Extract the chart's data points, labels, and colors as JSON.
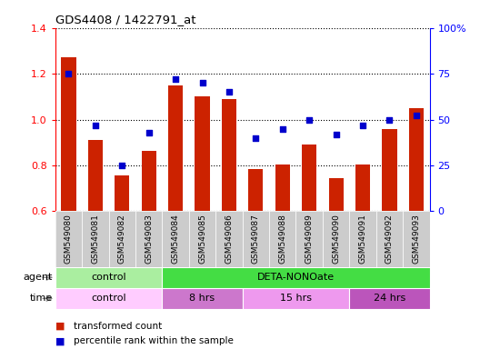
{
  "title": "GDS4408 / 1422791_at",
  "categories": [
    "GSM549080",
    "GSM549081",
    "GSM549082",
    "GSM549083",
    "GSM549084",
    "GSM549085",
    "GSM549086",
    "GSM549087",
    "GSM549088",
    "GSM549089",
    "GSM549090",
    "GSM549091",
    "GSM549092",
    "GSM549093"
  ],
  "bar_values": [
    1.27,
    0.91,
    0.755,
    0.865,
    1.15,
    1.1,
    1.09,
    0.785,
    0.805,
    0.89,
    0.745,
    0.805,
    0.96,
    1.05
  ],
  "scatter_values": [
    75,
    47,
    25,
    43,
    72,
    70,
    65,
    40,
    45,
    50,
    42,
    47,
    50,
    52
  ],
  "ylim_left": [
    0.6,
    1.4
  ],
  "ylim_right": [
    0,
    100
  ],
  "yticks_left": [
    0.6,
    0.8,
    1.0,
    1.2,
    1.4
  ],
  "yticks_right": [
    0,
    25,
    50,
    75,
    100
  ],
  "ytick_labels_right": [
    "0",
    "25",
    "50",
    "75",
    "100%"
  ],
  "bar_color": "#CC2200",
  "scatter_color": "#0000CC",
  "bar_bottom": 0.6,
  "agent_groups": [
    {
      "label": "control",
      "start": 0,
      "end": 4,
      "color": "#AAEEA A"
    },
    {
      "label": "DETA-NONOate",
      "start": 4,
      "end": 14,
      "color": "#44DD44"
    }
  ],
  "time_groups": [
    {
      "label": "control",
      "start": 0,
      "end": 4,
      "color": "#FFCCFF"
    },
    {
      "label": "8 hrs",
      "start": 4,
      "end": 7,
      "color": "#CC77CC"
    },
    {
      "label": "15 hrs",
      "start": 7,
      "end": 11,
      "color": "#EE99EE"
    },
    {
      "label": "24 hrs",
      "start": 11,
      "end": 14,
      "color": "#BB55BB"
    }
  ],
  "legend_items": [
    {
      "label": "transformed count",
      "color": "#CC2200"
    },
    {
      "label": "percentile rank within the sample",
      "color": "#0000CC"
    }
  ],
  "tick_bg_color": "#CCCCCC",
  "agent_label": "agent",
  "time_label": "time",
  "figsize": [
    5.28,
    3.84
  ],
  "dpi": 100
}
